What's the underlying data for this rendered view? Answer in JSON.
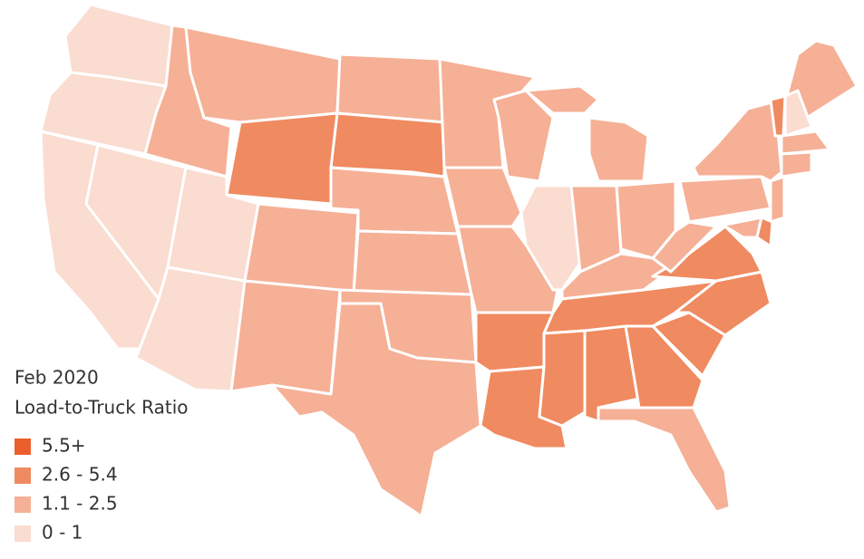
{
  "title": [
    "Feb 2020",
    "Load-to-Truck Ratio"
  ],
  "legend": [
    {
      "label": "5.5+",
      "color": "#eb5f2c"
    },
    {
      "label": "2.6 - 5.4",
      "color": "#f08a60"
    },
    {
      "label": "1.1 - 2.5",
      "color": "#f5b096"
    },
    {
      "label": "0 - 1",
      "color": "#fadcd0"
    }
  ]
}
